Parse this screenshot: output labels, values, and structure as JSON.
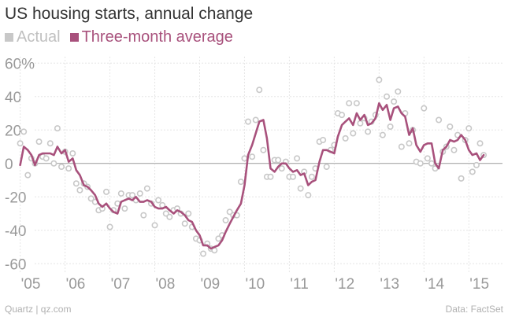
{
  "chart_data": {
    "type": "line",
    "title": "US housing starts, annual change",
    "xlabel": "",
    "ylabel": "",
    "y_tick_labels": [
      "60%",
      "40",
      "20",
      "0",
      "-20",
      "-40",
      "-60"
    ],
    "y_ticks": [
      60,
      40,
      20,
      0,
      -20,
      -40,
      -60
    ],
    "ylim": [
      -66,
      62
    ],
    "x_tick_labels": [
      "'05",
      "'06",
      "'07",
      "'08",
      "'09",
      "'10",
      "'11",
      "'12",
      "'13",
      "'14",
      "'15"
    ],
    "x_ticks": [
      2005,
      2006,
      2007,
      2008,
      2009,
      2010,
      2011,
      2012,
      2013,
      2014,
      2015
    ],
    "xlim": [
      2004.55,
      2015.75
    ],
    "grid": true,
    "legend_position": "top-left",
    "series": [
      {
        "name": "Actual",
        "style": "scatter",
        "color": "#c8c8c8",
        "values": [
          [
            2005.0,
            12
          ],
          [
            2005.08,
            19
          ],
          [
            2005.17,
            -7
          ],
          [
            2005.25,
            3
          ],
          [
            2005.33,
            0
          ],
          [
            2005.42,
            13
          ],
          [
            2005.5,
            4
          ],
          [
            2005.58,
            3
          ],
          [
            2005.67,
            12
          ],
          [
            2005.75,
            0
          ],
          [
            2005.83,
            21
          ],
          [
            2005.92,
            -2
          ],
          [
            2006.0,
            7
          ],
          [
            2006.08,
            -3
          ],
          [
            2006.17,
            6
          ],
          [
            2006.25,
            -12
          ],
          [
            2006.33,
            -16
          ],
          [
            2006.42,
            -12
          ],
          [
            2006.5,
            -14
          ],
          [
            2006.58,
            -21
          ],
          [
            2006.67,
            -23
          ],
          [
            2006.75,
            -28
          ],
          [
            2006.83,
            -27
          ],
          [
            2006.92,
            -17
          ],
          [
            2007.0,
            -38
          ],
          [
            2007.08,
            -28
          ],
          [
            2007.17,
            -24
          ],
          [
            2007.25,
            -18
          ],
          [
            2007.33,
            -27
          ],
          [
            2007.42,
            -19
          ],
          [
            2007.5,
            -19
          ],
          [
            2007.58,
            -22
          ],
          [
            2007.67,
            -18
          ],
          [
            2007.75,
            -31
          ],
          [
            2007.83,
            -15
          ],
          [
            2007.92,
            -24
          ],
          [
            2008.0,
            -37
          ],
          [
            2008.08,
            -22
          ],
          [
            2008.17,
            -25
          ],
          [
            2008.25,
            -30
          ],
          [
            2008.33,
            -32
          ],
          [
            2008.42,
            -28
          ],
          [
            2008.5,
            -27
          ],
          [
            2008.58,
            -30
          ],
          [
            2008.67,
            -36
          ],
          [
            2008.75,
            -30
          ],
          [
            2008.83,
            -38
          ],
          [
            2008.92,
            -45
          ],
          [
            2009.0,
            -46
          ],
          [
            2009.08,
            -54
          ],
          [
            2009.17,
            -48
          ],
          [
            2009.25,
            -51
          ],
          [
            2009.33,
            -52
          ],
          [
            2009.42,
            -45
          ],
          [
            2009.5,
            -43
          ],
          [
            2009.58,
            -34
          ],
          [
            2009.67,
            -29
          ],
          [
            2009.75,
            -31
          ],
          [
            2009.83,
            -31
          ],
          [
            2009.92,
            -11
          ],
          [
            2010.0,
            3
          ],
          [
            2010.08,
            25
          ],
          [
            2010.17,
            4
          ],
          [
            2010.25,
            26
          ],
          [
            2010.33,
            44
          ],
          [
            2010.42,
            8
          ],
          [
            2010.5,
            -8
          ],
          [
            2010.58,
            -8
          ],
          [
            2010.67,
            2
          ],
          [
            2010.75,
            2
          ],
          [
            2010.83,
            -3
          ],
          [
            2010.92,
            1
          ],
          [
            2011.0,
            -8
          ],
          [
            2011.08,
            -8
          ],
          [
            2011.17,
            3
          ],
          [
            2011.25,
            -15
          ],
          [
            2011.33,
            -5
          ],
          [
            2011.42,
            -19
          ],
          [
            2011.5,
            -8
          ],
          [
            2011.58,
            -3
          ],
          [
            2011.67,
            13
          ],
          [
            2011.75,
            14
          ],
          [
            2011.83,
            -2
          ],
          [
            2011.92,
            8
          ],
          [
            2012.0,
            11
          ],
          [
            2012.08,
            30
          ],
          [
            2012.17,
            29
          ],
          [
            2012.25,
            15
          ],
          [
            2012.33,
            36
          ],
          [
            2012.42,
            18
          ],
          [
            2012.5,
            36
          ],
          [
            2012.58,
            24
          ],
          [
            2012.67,
            27
          ],
          [
            2012.75,
            19
          ],
          [
            2012.83,
            25
          ],
          [
            2012.92,
            29
          ],
          [
            2013.0,
            50
          ],
          [
            2013.08,
            17
          ],
          [
            2013.17,
            40
          ],
          [
            2013.25,
            22
          ],
          [
            2013.33,
            37
          ],
          [
            2013.42,
            43
          ],
          [
            2013.5,
            10
          ],
          [
            2013.58,
            30
          ],
          [
            2013.67,
            12
          ],
          [
            2013.75,
            20
          ],
          [
            2013.83,
            1
          ],
          [
            2013.92,
            0
          ],
          [
            2014.0,
            33
          ],
          [
            2014.08,
            3
          ],
          [
            2014.17,
            0
          ],
          [
            2014.25,
            -3
          ],
          [
            2014.33,
            26
          ],
          [
            2014.42,
            7
          ],
          [
            2014.5,
            10
          ],
          [
            2014.58,
            22
          ],
          [
            2014.67,
            8
          ],
          [
            2014.75,
            17
          ],
          [
            2014.83,
            -9
          ],
          [
            2014.92,
            14
          ],
          [
            2015.0,
            21
          ],
          [
            2015.08,
            -5
          ],
          [
            2015.17,
            -1
          ],
          [
            2015.25,
            12
          ],
          [
            2015.33,
            5
          ]
        ]
      },
      {
        "name": "Three-month average",
        "style": "line",
        "color": "#a8517c",
        "values": [
          [
            2005.0,
            -1
          ],
          [
            2005.08,
            10
          ],
          [
            2005.17,
            8
          ],
          [
            2005.25,
            5
          ],
          [
            2005.33,
            -1
          ],
          [
            2005.42,
            5
          ],
          [
            2005.5,
            6
          ],
          [
            2005.58,
            6
          ],
          [
            2005.67,
            6
          ],
          [
            2005.75,
            5
          ],
          [
            2005.83,
            10
          ],
          [
            2005.92,
            6
          ],
          [
            2006.0,
            8
          ],
          [
            2006.08,
            1
          ],
          [
            2006.17,
            3
          ],
          [
            2006.25,
            -4
          ],
          [
            2006.33,
            -7
          ],
          [
            2006.42,
            -13
          ],
          [
            2006.5,
            -14
          ],
          [
            2006.58,
            -16
          ],
          [
            2006.67,
            -19
          ],
          [
            2006.75,
            -24
          ],
          [
            2006.83,
            -26
          ],
          [
            2006.92,
            -24
          ],
          [
            2007.0,
            -27
          ],
          [
            2007.08,
            -29
          ],
          [
            2007.17,
            -30
          ],
          [
            2007.25,
            -23
          ],
          [
            2007.33,
            -22
          ],
          [
            2007.42,
            -21
          ],
          [
            2007.5,
            -22
          ],
          [
            2007.58,
            -20
          ],
          [
            2007.67,
            -23
          ],
          [
            2007.75,
            -23
          ],
          [
            2007.83,
            -22
          ],
          [
            2007.92,
            -23
          ],
          [
            2008.0,
            -26
          ],
          [
            2008.08,
            -27
          ],
          [
            2008.17,
            -27
          ],
          [
            2008.25,
            -26
          ],
          [
            2008.33,
            -28
          ],
          [
            2008.42,
            -30
          ],
          [
            2008.5,
            -28
          ],
          [
            2008.58,
            -29
          ],
          [
            2008.67,
            -31
          ],
          [
            2008.75,
            -34
          ],
          [
            2008.83,
            -35
          ],
          [
            2008.92,
            -40
          ],
          [
            2009.0,
            -43
          ],
          [
            2009.08,
            -49
          ],
          [
            2009.17,
            -49
          ],
          [
            2009.25,
            -51
          ],
          [
            2009.33,
            -50
          ],
          [
            2009.42,
            -49
          ],
          [
            2009.5,
            -46
          ],
          [
            2009.58,
            -41
          ],
          [
            2009.67,
            -36
          ],
          [
            2009.75,
            -32
          ],
          [
            2009.83,
            -28
          ],
          [
            2009.92,
            -24
          ],
          [
            2010.0,
            -13
          ],
          [
            2010.08,
            5
          ],
          [
            2010.17,
            11
          ],
          [
            2010.25,
            18
          ],
          [
            2010.33,
            25
          ],
          [
            2010.42,
            26
          ],
          [
            2010.5,
            15
          ],
          [
            2010.58,
            -3
          ],
          [
            2010.67,
            -5
          ],
          [
            2010.75,
            -2
          ],
          [
            2010.83,
            0
          ],
          [
            2010.92,
            0
          ],
          [
            2011.0,
            -3
          ],
          [
            2011.08,
            -5
          ],
          [
            2011.17,
            -4
          ],
          [
            2011.25,
            -7
          ],
          [
            2011.33,
            -6
          ],
          [
            2011.42,
            -13
          ],
          [
            2011.5,
            -11
          ],
          [
            2011.58,
            -10
          ],
          [
            2011.67,
            1
          ],
          [
            2011.75,
            8
          ],
          [
            2011.83,
            8
          ],
          [
            2011.92,
            7
          ],
          [
            2012.0,
            6
          ],
          [
            2012.08,
            16
          ],
          [
            2012.17,
            23
          ],
          [
            2012.25,
            25
          ],
          [
            2012.33,
            27
          ],
          [
            2012.42,
            23
          ],
          [
            2012.5,
            30
          ],
          [
            2012.58,
            26
          ],
          [
            2012.67,
            29
          ],
          [
            2012.75,
            23
          ],
          [
            2012.83,
            24
          ],
          [
            2012.92,
            27
          ],
          [
            2013.0,
            36
          ],
          [
            2013.08,
            32
          ],
          [
            2013.17,
            35
          ],
          [
            2013.25,
            26
          ],
          [
            2013.33,
            33
          ],
          [
            2013.42,
            34
          ],
          [
            2013.5,
            30
          ],
          [
            2013.58,
            28
          ],
          [
            2013.67,
            17
          ],
          [
            2013.75,
            21
          ],
          [
            2013.83,
            11
          ],
          [
            2013.92,
            7
          ],
          [
            2014.0,
            11
          ],
          [
            2014.08,
            12
          ],
          [
            2014.17,
            12
          ],
          [
            2014.25,
            0
          ],
          [
            2014.33,
            -3
          ],
          [
            2014.42,
            8
          ],
          [
            2014.5,
            10
          ],
          [
            2014.58,
            14
          ],
          [
            2014.67,
            13
          ],
          [
            2014.75,
            14
          ],
          [
            2014.83,
            17
          ],
          [
            2014.92,
            14
          ],
          [
            2015.0,
            8
          ],
          [
            2015.08,
            5
          ],
          [
            2015.17,
            6
          ],
          [
            2015.25,
            2
          ],
          [
            2015.33,
            5
          ]
        ]
      }
    ]
  },
  "footer": {
    "source_left": "Quartz | qz.com",
    "source_right": "Data: FactSet"
  }
}
